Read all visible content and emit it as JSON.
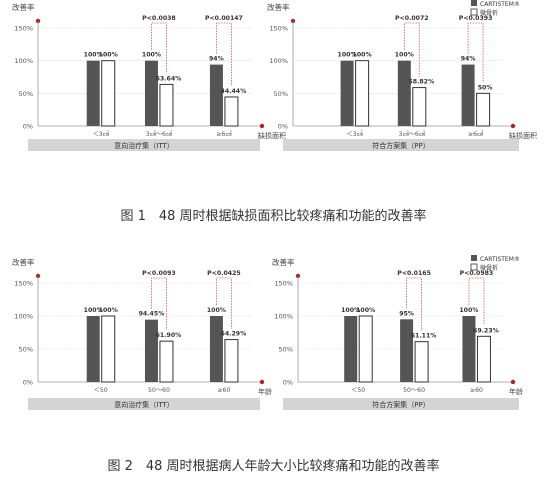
{
  "figures": [
    {
      "caption": "图 1　48 周时根据缺损面积比较疼痛和功能的改善率",
      "panels": [
        {
          "y_title": "改善率",
          "x_title": "缺损面积",
          "footer": "意向治疗集（ITT）",
          "show_legend": false,
          "chart_data": {
            "type": "bar",
            "categories": [
              "＜3㎠",
              "3㎠～6㎠",
              "≥6㎠"
            ],
            "series": [
              {
                "name": "CARTISTEM®",
                "values": [
                  100,
                  100,
                  94
                ]
              },
              {
                "name": "微骨折",
                "values": [
                  100,
                  63.64,
                  44.44
                ]
              }
            ],
            "value_labels": [
              [
                "100%",
                "100%"
              ],
              [
                "100%",
                "63.64%"
              ],
              [
                "94%",
                "44.44%"
              ]
            ],
            "p_values": [
              "",
              "P<0.0038",
              "P<0.00147"
            ],
            "yticks": [
              "0%",
              "50%",
              "100%",
              "150%"
            ],
            "ylim": [
              0,
              150
            ]
          }
        },
        {
          "y_title": "改善率",
          "x_title": "缺损面积",
          "footer": "符合方案集（PP）",
          "show_legend": true,
          "chart_data": {
            "type": "bar",
            "categories": [
              "＜3㎠",
              "3㎠～6㎠",
              "≥6㎠"
            ],
            "series": [
              {
                "name": "CARTISTEM®",
                "values": [
                  100,
                  100,
                  94
                ]
              },
              {
                "name": "微骨折",
                "values": [
                  100,
                  58.82,
                  50
                ]
              }
            ],
            "value_labels": [
              [
                "100%",
                "100%"
              ],
              [
                "100%",
                "58.82%"
              ],
              [
                "94%",
                "50%"
              ]
            ],
            "p_values": [
              "",
              "P<0.0072",
              "P<0.0393"
            ],
            "yticks": [
              "0%",
              "50%",
              "100%",
              "150%"
            ],
            "ylim": [
              0,
              150
            ]
          }
        }
      ]
    },
    {
      "caption": "图 2　48 周时根据病人年龄大小比较疼痛和功能的改善率",
      "panels": [
        {
          "y_title": "改善率",
          "x_title": "年龄",
          "footer": "意向治疗集（ITT）",
          "show_legend": false,
          "chart_data": {
            "type": "bar",
            "categories": [
              "＜50",
              "50～60",
              "≥60"
            ],
            "series": [
              {
                "name": "CARTISTEM®",
                "values": [
                  100,
                  94.45,
                  100
                ]
              },
              {
                "name": "微骨折",
                "values": [
                  100,
                  61.9,
                  64.29
                ]
              }
            ],
            "value_labels": [
              [
                "100%",
                "100%"
              ],
              [
                "94.45%",
                "61.90%"
              ],
              [
                "100%",
                "64.29%"
              ]
            ],
            "p_values": [
              "",
              "P<0.0093",
              "P<0.0425"
            ],
            "yticks": [
              "0%",
              "50%",
              "100%",
              "150%"
            ],
            "ylim": [
              0,
              150
            ]
          }
        },
        {
          "y_title": "改善率",
          "x_title": "年龄",
          "footer": "符合方案集（PP）",
          "show_legend": true,
          "chart_data": {
            "type": "bar",
            "categories": [
              "＜50",
              "50～60",
              "≥60"
            ],
            "series": [
              {
                "name": "CARTISTEM®",
                "values": [
                  100,
                  95,
                  100
                ]
              },
              {
                "name": "微骨折",
                "values": [
                  100,
                  61.11,
                  69.23
                ]
              }
            ],
            "value_labels": [
              [
                "100%",
                "100%"
              ],
              [
                "95%",
                "61.11%"
              ],
              [
                "100%",
                "69.23%"
              ]
            ],
            "p_values": [
              "",
              "P<0.0165",
              "P<0.0983"
            ],
            "yticks": [
              "0%",
              "50%",
              "100%",
              "150%"
            ],
            "ylim": [
              0,
              150
            ]
          }
        }
      ]
    }
  ],
  "colors": {
    "dark_bar": "#555555",
    "light_bar": "#ffffff",
    "axis": "#999999",
    "grid": "#d0d0d0",
    "p_line": "#d9534f",
    "axis_dot": "#b02020",
    "footer_bg": "#d4d4d4"
  }
}
